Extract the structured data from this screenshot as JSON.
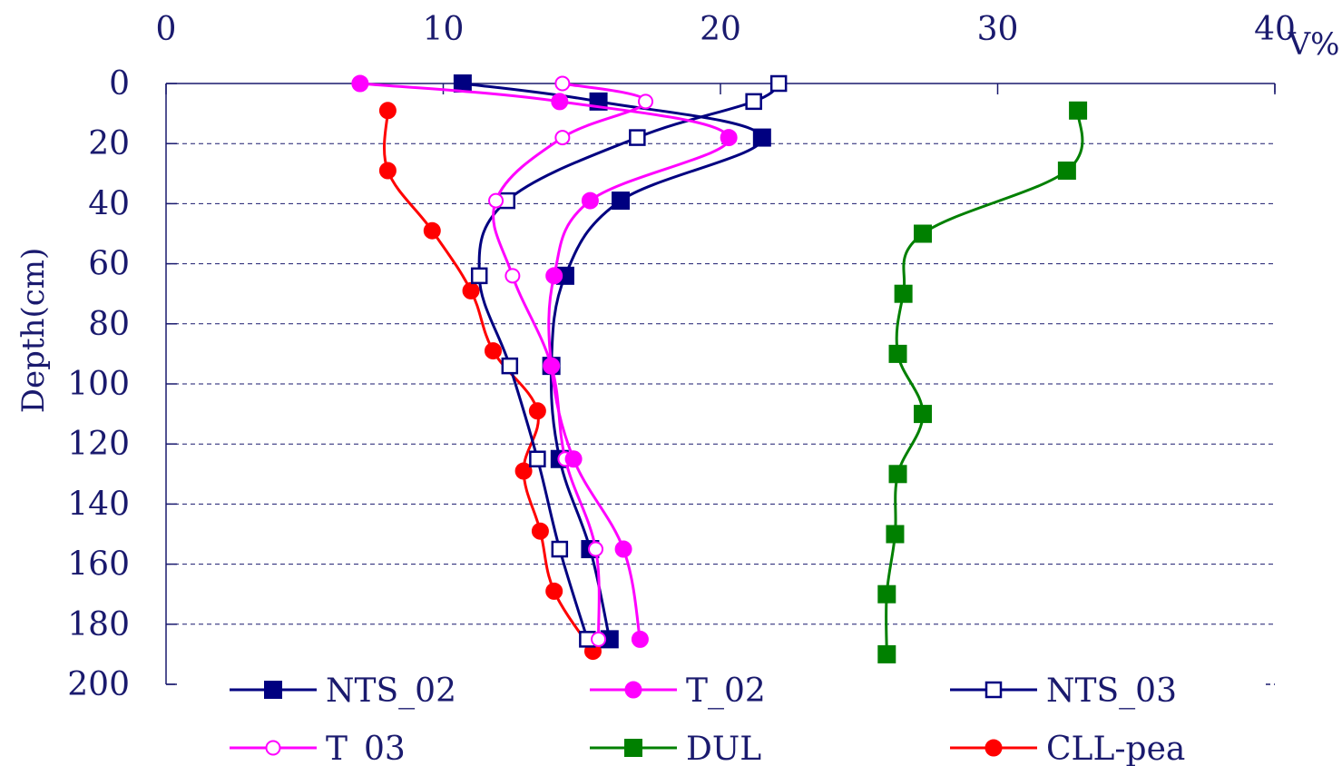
{
  "chart_data": {
    "type": "line",
    "orientation": "depth-profile",
    "xlabel": "V%",
    "ylabel": "Depth(cm)",
    "xlim": [
      0,
      40
    ],
    "ylim": [
      0,
      200
    ],
    "y_inverted": true,
    "x_axis_position": "top",
    "xticks": [
      0,
      10,
      20,
      30,
      40
    ],
    "yticks": [
      0,
      20,
      40,
      60,
      80,
      100,
      120,
      140,
      160,
      180,
      200
    ],
    "grid": "horizontal-dashed",
    "legend_position": "bottom",
    "legend_columns": 3,
    "series": [
      {
        "name": "NTS_02",
        "color": "#000080",
        "marker": "square-filled",
        "x": [
          10.7,
          15.6,
          21.5,
          16.4,
          14.4,
          13.9,
          14.2,
          15.3,
          16.0
        ],
        "depth": [
          0,
          6,
          18,
          39,
          64,
          94,
          125,
          155,
          185
        ]
      },
      {
        "name": "T_02",
        "color": "#ff00ff",
        "marker": "circle-filled",
        "x": [
          7.0,
          14.2,
          20.3,
          15.3,
          14.0,
          13.9,
          14.7,
          16.5,
          17.1
        ],
        "depth": [
          0,
          6,
          18,
          39,
          64,
          94,
          125,
          155,
          185
        ]
      },
      {
        "name": "NTS_03",
        "color": "#000080",
        "marker": "square-open",
        "x": [
          22.1,
          21.2,
          17.0,
          12.3,
          11.3,
          12.4,
          13.4,
          14.2,
          15.2
        ],
        "depth": [
          0,
          6,
          18,
          39,
          64,
          94,
          125,
          155,
          185
        ]
      },
      {
        "name": "T_03",
        "color": "#ff00ff",
        "marker": "circle-open",
        "x": [
          14.3,
          17.3,
          14.3,
          11.9,
          12.5,
          13.9,
          14.4,
          15.5,
          15.6
        ],
        "depth": [
          0,
          6,
          18,
          39,
          64,
          94,
          125,
          155,
          185
        ]
      },
      {
        "name": "DUL",
        "color": "#008000",
        "marker": "square-filled",
        "x": [
          32.9,
          32.5,
          27.3,
          26.6,
          26.4,
          27.3,
          26.4,
          26.3,
          26.0,
          26.0
        ],
        "depth": [
          9,
          29,
          50,
          70,
          90,
          110,
          130,
          150,
          170,
          190
        ]
      },
      {
        "name": "CLL-pea",
        "color": "#ff0000",
        "marker": "circle-filled",
        "x": [
          8.0,
          8.0,
          9.6,
          11.0,
          11.8,
          13.4,
          12.9,
          13.5,
          14.0,
          15.4
        ],
        "depth": [
          9,
          29,
          49,
          69,
          89,
          109,
          129,
          149,
          169,
          189
        ]
      }
    ]
  }
}
